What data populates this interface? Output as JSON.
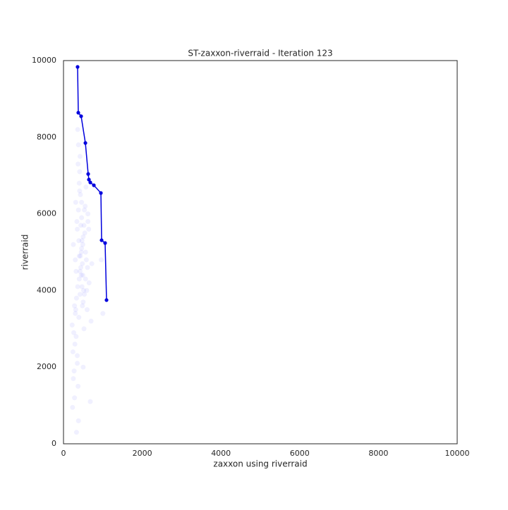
{
  "chart_data": {
    "type": "scatter",
    "title": "ST-zaxxon-riverraid - Iteration 123",
    "x_label": "zaxxon using riverraid",
    "y_label": "riverraid",
    "xlim": [
      0,
      10000
    ],
    "ylim": [
      0,
      10000
    ],
    "xticks": [
      0,
      2000,
      4000,
      6000,
      8000,
      10000
    ],
    "yticks": [
      0,
      2000,
      4000,
      6000,
      8000,
      10000
    ],
    "grid": false,
    "series": [
      {
        "color": "#0000ff",
        "opacity": 0.06,
        "x": [
          250,
          300,
          320,
          350,
          380,
          400,
          420,
          450,
          480,
          500,
          280,
          310,
          340,
          360,
          390,
          410,
          430,
          460,
          490,
          520,
          260,
          330,
          370,
          400,
          440,
          470,
          510,
          550,
          600,
          650,
          220,
          290,
          350,
          380,
          420,
          460,
          500,
          540,
          580,
          620,
          240,
          300,
          360,
          390,
          430,
          470,
          520,
          560,
          610,
          700,
          270,
          320,
          370,
          410,
          450,
          490,
          530,
          570,
          640,
          720,
          230,
          280,
          330,
          380,
          420,
          460,
          500,
          560,
          620,
          680,
          250,
          310,
          350,
          400,
          440,
          480,
          530,
          590,
          960,
          1000
        ],
        "values": [
          5200,
          4800,
          4500,
          5600,
          6100,
          4300,
          3900,
          5000,
          4700,
          5400,
          3600,
          6300,
          5800,
          4100,
          3300,
          6600,
          4900,
          5100,
          4400,
          5700,
          2900,
          3800,
          7300,
          6800,
          4600,
          5300,
          4000,
          6200,
          3500,
          4200,
          3100,
          2600,
          2100,
          7800,
          4500,
          5900,
          3700,
          5500,
          4800,
          6000,
          2400,
          3400,
          8200,
          5300,
          6500,
          4100,
          3000,
          5000,
          4600,
          3200,
          1900,
          2800,
          1500,
          7100,
          4400,
          5200,
          3900,
          6700,
          5600,
          4700,
          950,
          1200,
          300,
          600,
          7500,
          6300,
          2000,
          4300,
          5800,
          1100,
          1700,
          3500,
          2300,
          4900,
          5700,
          3600,
          6100,
          4000,
          4800,
          3400
        ]
      },
      {
        "color": "#0000dd",
        "line": true,
        "x": [
          358,
          376,
          448,
          556,
          627,
          645,
          681,
          771,
          950,
          968,
          1057,
          1093
        ],
        "values": [
          9835,
          8640,
          8548,
          7849,
          7040,
          6893,
          6820,
          6746,
          6544,
          5312,
          5239,
          3750
        ]
      }
    ]
  }
}
